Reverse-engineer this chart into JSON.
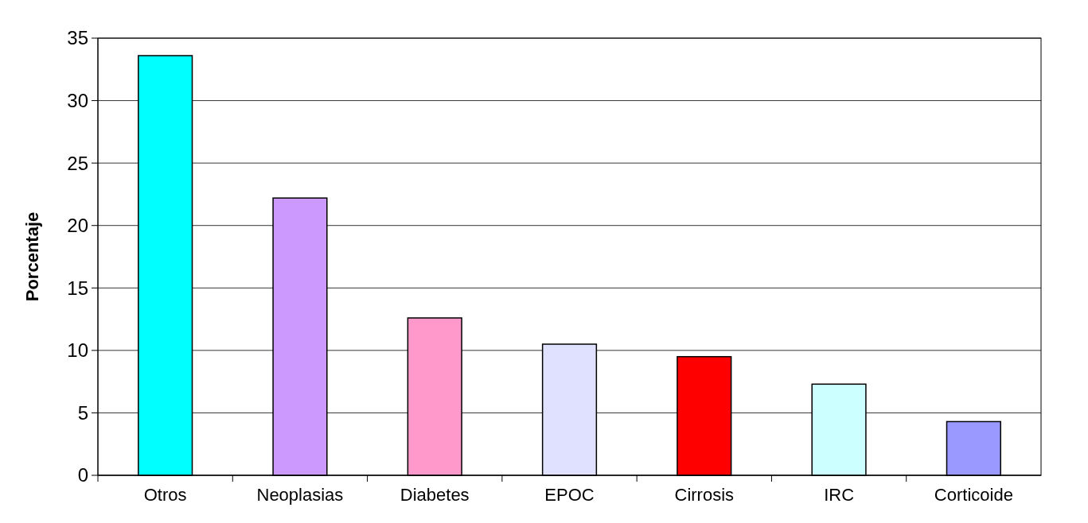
{
  "chart_data": {
    "type": "bar",
    "ylabel": "Porcentaje",
    "categories": [
      "Otros",
      "Neoplasias",
      "Diabetes",
      "EPOC",
      "Cirrosis",
      "IRC",
      "Corticoide"
    ],
    "values": [
      33.6,
      22.2,
      12.6,
      10.5,
      9.5,
      7.3,
      4.3
    ],
    "colors": [
      "#00ffff",
      "#cc99ff",
      "#ff99cc",
      "#e0e0ff",
      "#ff0000",
      "#ccffff",
      "#9999ff"
    ],
    "ylim": [
      0,
      35
    ],
    "yticks": [
      0,
      5,
      10,
      15,
      20,
      25,
      30,
      35
    ],
    "grid": "y"
  }
}
